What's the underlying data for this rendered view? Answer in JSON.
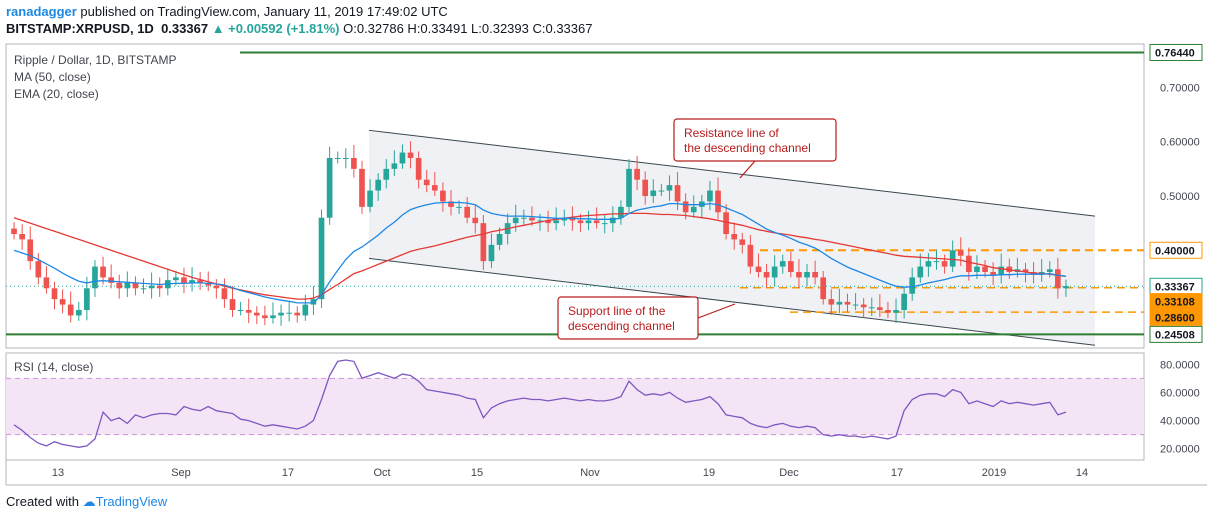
{
  "header": {
    "user": "ranadagger",
    "published_text": " published on TradingView.com, January 11, 2019 17:49:02 UTC",
    "symbol": "BITSTAMP:XRPUSD, 1D",
    "last": "0.33367",
    "change": "▲ +0.00592 (+1.81%)",
    "ohlc": "O:0.32786 H:0.33491 L:0.32393 C:0.33367"
  },
  "legend": {
    "title": "Ripple / Dollar, 1D, BITSTAMP",
    "ma": "MA (50, close)",
    "ema": "EMA (20, close)",
    "rsi": "RSI (14, close)"
  },
  "footer": {
    "created_with": "Created with",
    "brand": "TradingView"
  },
  "colors": {
    "up": "#26a69a",
    "down": "#ef5350",
    "ma": "#e53935",
    "ema": "#1e88e5",
    "channel": "#37474f",
    "channel_fill": "#f0f1f4",
    "level_green": "#2e7d32",
    "orange": "#ff9800",
    "rsi": "#7e57c2",
    "rsi_band": "#f3e5f5",
    "annotation": "#b71c1c"
  },
  "chart_data": {
    "type": "candlestick",
    "price_axis": {
      "ticks": [
        "0.70000",
        "0.60000",
        "0.50000",
        "0.40000",
        "0.33367",
        "0.33108",
        "0.28600",
        "0.24508",
        "0.76440"
      ],
      "range": [
        0.22,
        0.78
      ]
    },
    "time_axis": [
      "13",
      "Sep",
      "17",
      "Oct",
      "15",
      "Nov",
      "19",
      "Dec",
      "17",
      "2019",
      "14"
    ],
    "levels": [
      {
        "label": "0.76440",
        "value": 0.7644,
        "style": "solid-green"
      },
      {
        "label": "0.24508",
        "value": 0.24508,
        "style": "solid-green"
      },
      {
        "label": "0.40000",
        "value": 0.4,
        "style": "dashed-orange"
      },
      {
        "label": "0.33108",
        "value": 0.33108,
        "style": "dashed-orange"
      },
      {
        "label": "0.28600",
        "value": 0.286,
        "style": "dashed-orange"
      },
      {
        "label": "0.33367",
        "value": 0.33367,
        "style": "last-price"
      }
    ],
    "channel": {
      "upper": [
        [
          0.62,
          0.621
        ],
        [
          1.0,
          0.463
        ]
      ],
      "lower": [
        [
          0.62,
          0.385
        ],
        [
          1.0,
          0.225
        ]
      ]
    },
    "annotations": [
      {
        "text": [
          "Resistance line of",
          "the descending channel"
        ]
      },
      {
        "text": [
          "Support line of the",
          "descending channel"
        ]
      }
    ],
    "close": [
      0.43,
      0.42,
      0.38,
      0.35,
      0.33,
      0.31,
      0.3,
      0.28,
      0.29,
      0.33,
      0.37,
      0.35,
      0.34,
      0.33,
      0.34,
      0.33,
      0.33,
      0.335,
      0.33,
      0.345,
      0.35,
      0.34,
      0.345,
      0.34,
      0.335,
      0.33,
      0.31,
      0.29,
      0.29,
      0.285,
      0.28,
      0.275,
      0.28,
      0.285,
      0.285,
      0.28,
      0.3,
      0.31,
      0.46,
      0.57,
      0.57,
      0.57,
      0.55,
      0.48,
      0.51,
      0.53,
      0.55,
      0.56,
      0.58,
      0.57,
      0.53,
      0.52,
      0.51,
      0.49,
      0.48,
      0.48,
      0.46,
      0.45,
      0.38,
      0.41,
      0.43,
      0.45,
      0.46,
      0.46,
      0.455,
      0.455,
      0.45,
      0.455,
      0.46,
      0.455,
      0.45,
      0.455,
      0.45,
      0.45,
      0.46,
      0.48,
      0.55,
      0.53,
      0.5,
      0.51,
      0.51,
      0.52,
      0.49,
      0.47,
      0.48,
      0.49,
      0.51,
      0.47,
      0.43,
      0.42,
      0.41,
      0.37,
      0.36,
      0.35,
      0.37,
      0.38,
      0.36,
      0.35,
      0.36,
      0.35,
      0.31,
      0.3,
      0.305,
      0.3,
      0.3,
      0.295,
      0.295,
      0.29,
      0.285,
      0.29,
      0.32,
      0.35,
      0.37,
      0.38,
      0.38,
      0.37,
      0.4,
      0.39,
      0.36,
      0.37,
      0.36,
      0.355,
      0.37,
      0.36,
      0.365,
      0.36,
      0.355,
      0.36,
      0.365,
      0.33,
      0.334
    ],
    "ma50": [
      0.46,
      0.455,
      0.45,
      0.445,
      0.44,
      0.435,
      0.43,
      0.425,
      0.42,
      0.415,
      0.41,
      0.405,
      0.4,
      0.395,
      0.39,
      0.385,
      0.38,
      0.375,
      0.37,
      0.365,
      0.36,
      0.355,
      0.35,
      0.346,
      0.342,
      0.338,
      0.334,
      0.33,
      0.327,
      0.324,
      0.321,
      0.318,
      0.316,
      0.314,
      0.312,
      0.31,
      0.31,
      0.312,
      0.318,
      0.328,
      0.337,
      0.347,
      0.357,
      0.362,
      0.368,
      0.374,
      0.38,
      0.386,
      0.392,
      0.398,
      0.402,
      0.405,
      0.408,
      0.412,
      0.416,
      0.42,
      0.424,
      0.427,
      0.43,
      0.434,
      0.437,
      0.44,
      0.443,
      0.446,
      0.449,
      0.452,
      0.455,
      0.457,
      0.459,
      0.461,
      0.463,
      0.464,
      0.465,
      0.466,
      0.467,
      0.467,
      0.468,
      0.468,
      0.468,
      0.467,
      0.466,
      0.466,
      0.465,
      0.464,
      0.462,
      0.46,
      0.458,
      0.455,
      0.452,
      0.449,
      0.446,
      0.442,
      0.438,
      0.435,
      0.432,
      0.43,
      0.428,
      0.425,
      0.423,
      0.42,
      0.418,
      0.415,
      0.412,
      0.409,
      0.406,
      0.403,
      0.4,
      0.397,
      0.394,
      0.391,
      0.389,
      0.388,
      0.387,
      0.386,
      0.385,
      0.384,
      0.383,
      0.382,
      0.378,
      0.375,
      0.372,
      0.368,
      0.366,
      0.364,
      0.362,
      0.36,
      0.358,
      0.357,
      0.356,
      0.354,
      0.352
    ],
    "ema20": [
      0.4,
      0.395,
      0.39,
      0.383,
      0.375,
      0.367,
      0.358,
      0.35,
      0.343,
      0.34,
      0.343,
      0.344,
      0.343,
      0.342,
      0.341,
      0.34,
      0.339,
      0.338,
      0.337,
      0.338,
      0.339,
      0.339,
      0.34,
      0.34,
      0.339,
      0.338,
      0.336,
      0.331,
      0.326,
      0.322,
      0.318,
      0.314,
      0.311,
      0.308,
      0.306,
      0.303,
      0.303,
      0.303,
      0.318,
      0.342,
      0.363,
      0.383,
      0.398,
      0.406,
      0.417,
      0.428,
      0.441,
      0.452,
      0.465,
      0.475,
      0.48,
      0.484,
      0.487,
      0.488,
      0.488,
      0.488,
      0.487,
      0.484,
      0.474,
      0.468,
      0.465,
      0.463,
      0.463,
      0.463,
      0.462,
      0.461,
      0.46,
      0.459,
      0.459,
      0.459,
      0.458,
      0.458,
      0.457,
      0.457,
      0.457,
      0.459,
      0.468,
      0.474,
      0.477,
      0.48,
      0.482,
      0.486,
      0.486,
      0.484,
      0.484,
      0.484,
      0.486,
      0.484,
      0.478,
      0.472,
      0.466,
      0.457,
      0.448,
      0.439,
      0.433,
      0.428,
      0.422,
      0.415,
      0.41,
      0.404,
      0.395,
      0.385,
      0.377,
      0.369,
      0.363,
      0.357,
      0.351,
      0.345,
      0.339,
      0.334,
      0.332,
      0.333,
      0.336,
      0.34,
      0.343,
      0.346,
      0.35,
      0.353,
      0.353,
      0.354,
      0.354,
      0.354,
      0.355,
      0.355,
      0.356,
      0.356,
      0.356,
      0.356,
      0.357,
      0.354,
      0.352
    ],
    "rsi": {
      "axis_ticks": [
        "80.0000",
        "60.0000",
        "40.0000",
        "20.0000"
      ],
      "band": [
        30,
        70
      ],
      "values": [
        37,
        33,
        28,
        24,
        22,
        25,
        23,
        22,
        21,
        22,
        27,
        46,
        40,
        42,
        38,
        44,
        42,
        44,
        45,
        45,
        44,
        50,
        48,
        47,
        50,
        47,
        46,
        45,
        41,
        40,
        38,
        36,
        37,
        36,
        35,
        34,
        36,
        40,
        55,
        72,
        82,
        83,
        82,
        70,
        72,
        74,
        72,
        70,
        73,
        72,
        68,
        62,
        61,
        60,
        59,
        58,
        56,
        55,
        42,
        49,
        52,
        54,
        55,
        56,
        55,
        55,
        54,
        55,
        56,
        55,
        54,
        55,
        54,
        54,
        55,
        57,
        68,
        62,
        58,
        59,
        58,
        60,
        56,
        53,
        54,
        55,
        57,
        52,
        44,
        43,
        42,
        38,
        36,
        35,
        37,
        38,
        36,
        35,
        36,
        35,
        30,
        29,
        30,
        29,
        29,
        28,
        29,
        28,
        27,
        29,
        47,
        55,
        58,
        59,
        59,
        57,
        62,
        60,
        52,
        54,
        52,
        50,
        54,
        52,
        53,
        52,
        51,
        52,
        53,
        44,
        46
      ]
    }
  }
}
